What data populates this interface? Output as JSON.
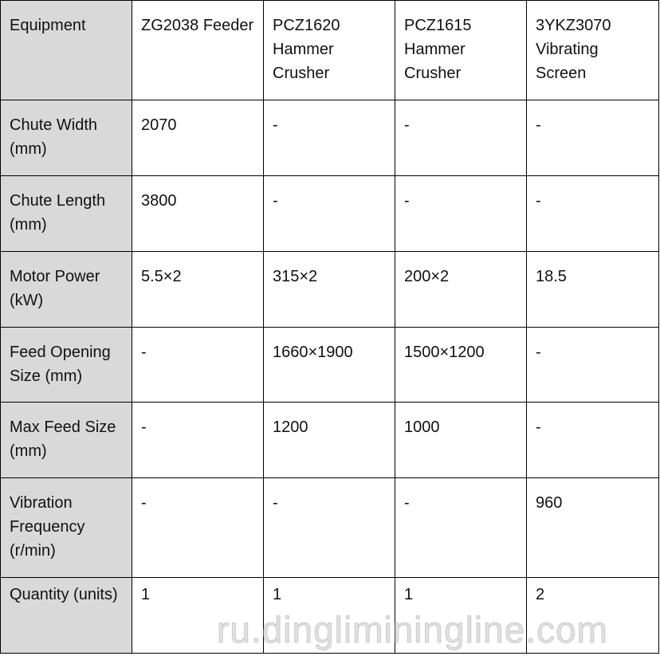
{
  "header": [
    "Equipment",
    "ZG2038 Feeder",
    "PCZ1620 Hammer Crusher",
    "PCZ1615 Hammer Crusher",
    "3YKZ3070 Vibrating Screen"
  ],
  "rows": [
    {
      "label": "Chute Width (mm)",
      "values": [
        "2070",
        "-",
        "-",
        "-"
      ]
    },
    {
      "label": "Chute Length (mm)",
      "values": [
        "3800",
        "-",
        "-",
        "-"
      ]
    },
    {
      "label": "Motor Power (kW)",
      "values": [
        "5.5×2",
        "315×2",
        "200×2",
        "18.5"
      ]
    },
    {
      "label": "Feed Opening Size (mm)",
      "values": [
        "-",
        "1660×1900",
        "1500×1200",
        "-"
      ]
    },
    {
      "label": "Max Feed Size (mm)",
      "values": [
        "-",
        "1200",
        "1000",
        "-"
      ]
    },
    {
      "label": "Vibration Frequency (r/min)",
      "values": [
        "-",
        "-",
        "-",
        "960"
      ]
    },
    {
      "label": "Quantity (units)",
      "values": [
        "1",
        "1",
        "1",
        "2"
      ]
    }
  ],
  "watermark": "ru.dingliminingline.com",
  "colors": {
    "header_col_bg": "#d9d9d9",
    "border": "#000000"
  }
}
